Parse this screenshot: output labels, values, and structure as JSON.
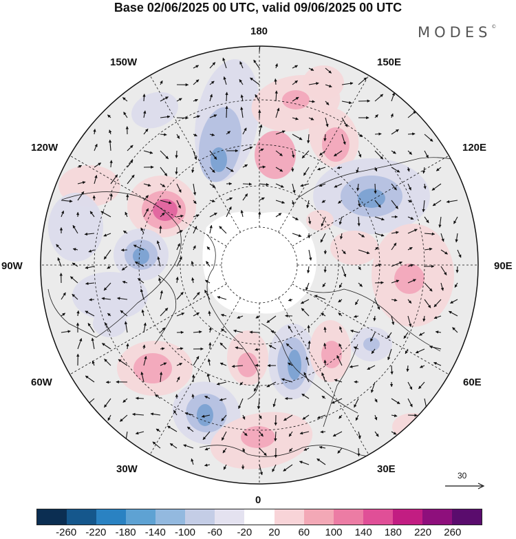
{
  "title": "Base 02/06/2025 00 UTC, valid 09/06/2025 00 UTC",
  "brand": "MODES",
  "brand_mark": "©",
  "longitude_labels": {
    "deg180": "180",
    "e150": "150E",
    "e120": "120E",
    "e90": "90E",
    "e60": "60E",
    "e30": "30E",
    "deg0": "0",
    "w30": "30W",
    "w60": "60W",
    "w90": "90W",
    "w120": "120W",
    "w150": "150W"
  },
  "reference_vector": {
    "label": "30"
  },
  "colorbar": {
    "colors": [
      "#0b2e52",
      "#15578c",
      "#2a82c2",
      "#5ea2d3",
      "#93b9df",
      "#c4cde6",
      "#e4e2f0",
      "#ffffff",
      "#f8d4d8",
      "#f3a8b6",
      "#ec7ca4",
      "#e04f97",
      "#c21d82",
      "#8e0f7c",
      "#5a0c6d"
    ],
    "ticks": [
      "-260",
      "-220",
      "-180",
      "-140",
      "-100",
      "-60",
      "-20",
      "20",
      "60",
      "100",
      "140",
      "180",
      "220",
      "260"
    ]
  },
  "map": {
    "projection": "north polar stereographic",
    "anomaly_colors": {
      "neg_strong": "#7ba2d2",
      "neg_mid": "#b4c0e2",
      "neg_weak": "#dcdcec",
      "pos_strong": "#e0649e",
      "pos_mid": "#f2a8bc",
      "pos_weak": "#f5d8da",
      "neutral": "#ebebeb"
    }
  }
}
